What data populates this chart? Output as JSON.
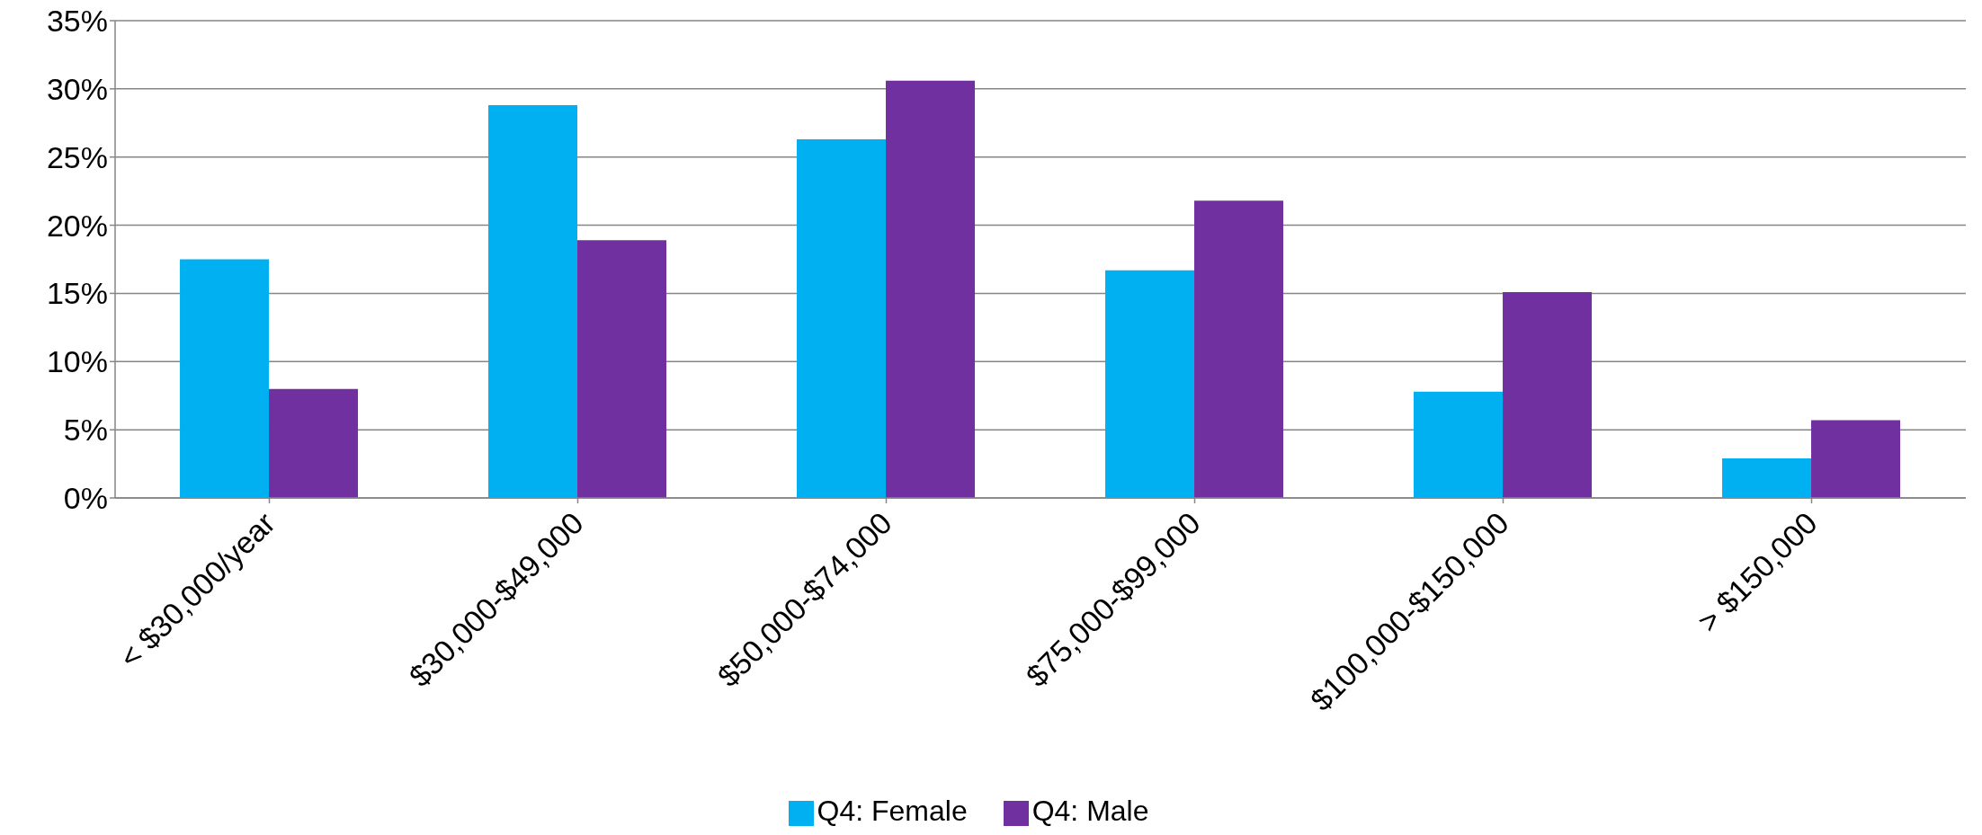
{
  "chart_data": {
    "type": "bar",
    "categories": [
      "< $30,000/year",
      "$30,000-$49,000",
      "$50,000-$74,000",
      "$75,000-$99,000",
      "$100,000-$150,000",
      "> $150,000"
    ],
    "series": [
      {
        "name": "Q4: Female",
        "color": "#00b0f0",
        "values": [
          17.5,
          28.8,
          26.3,
          16.7,
          7.8,
          2.9
        ]
      },
      {
        "name": "Q4: Male",
        "color": "#7030a0",
        "values": [
          8.0,
          18.9,
          30.6,
          21.8,
          15.1,
          5.7
        ]
      }
    ],
    "ylim": [
      0,
      35
    ],
    "yticks": [
      {
        "value": 0,
        "label": "0%"
      },
      {
        "value": 5,
        "label": "5%"
      },
      {
        "value": 10,
        "label": "10%"
      },
      {
        "value": 15,
        "label": "15%"
      },
      {
        "value": 20,
        "label": "20%"
      },
      {
        "value": 25,
        "label": "25%"
      },
      {
        "value": 30,
        "label": "30%"
      },
      {
        "value": 35,
        "label": "35%"
      }
    ],
    "grid": "y",
    "legend": "bottom"
  }
}
